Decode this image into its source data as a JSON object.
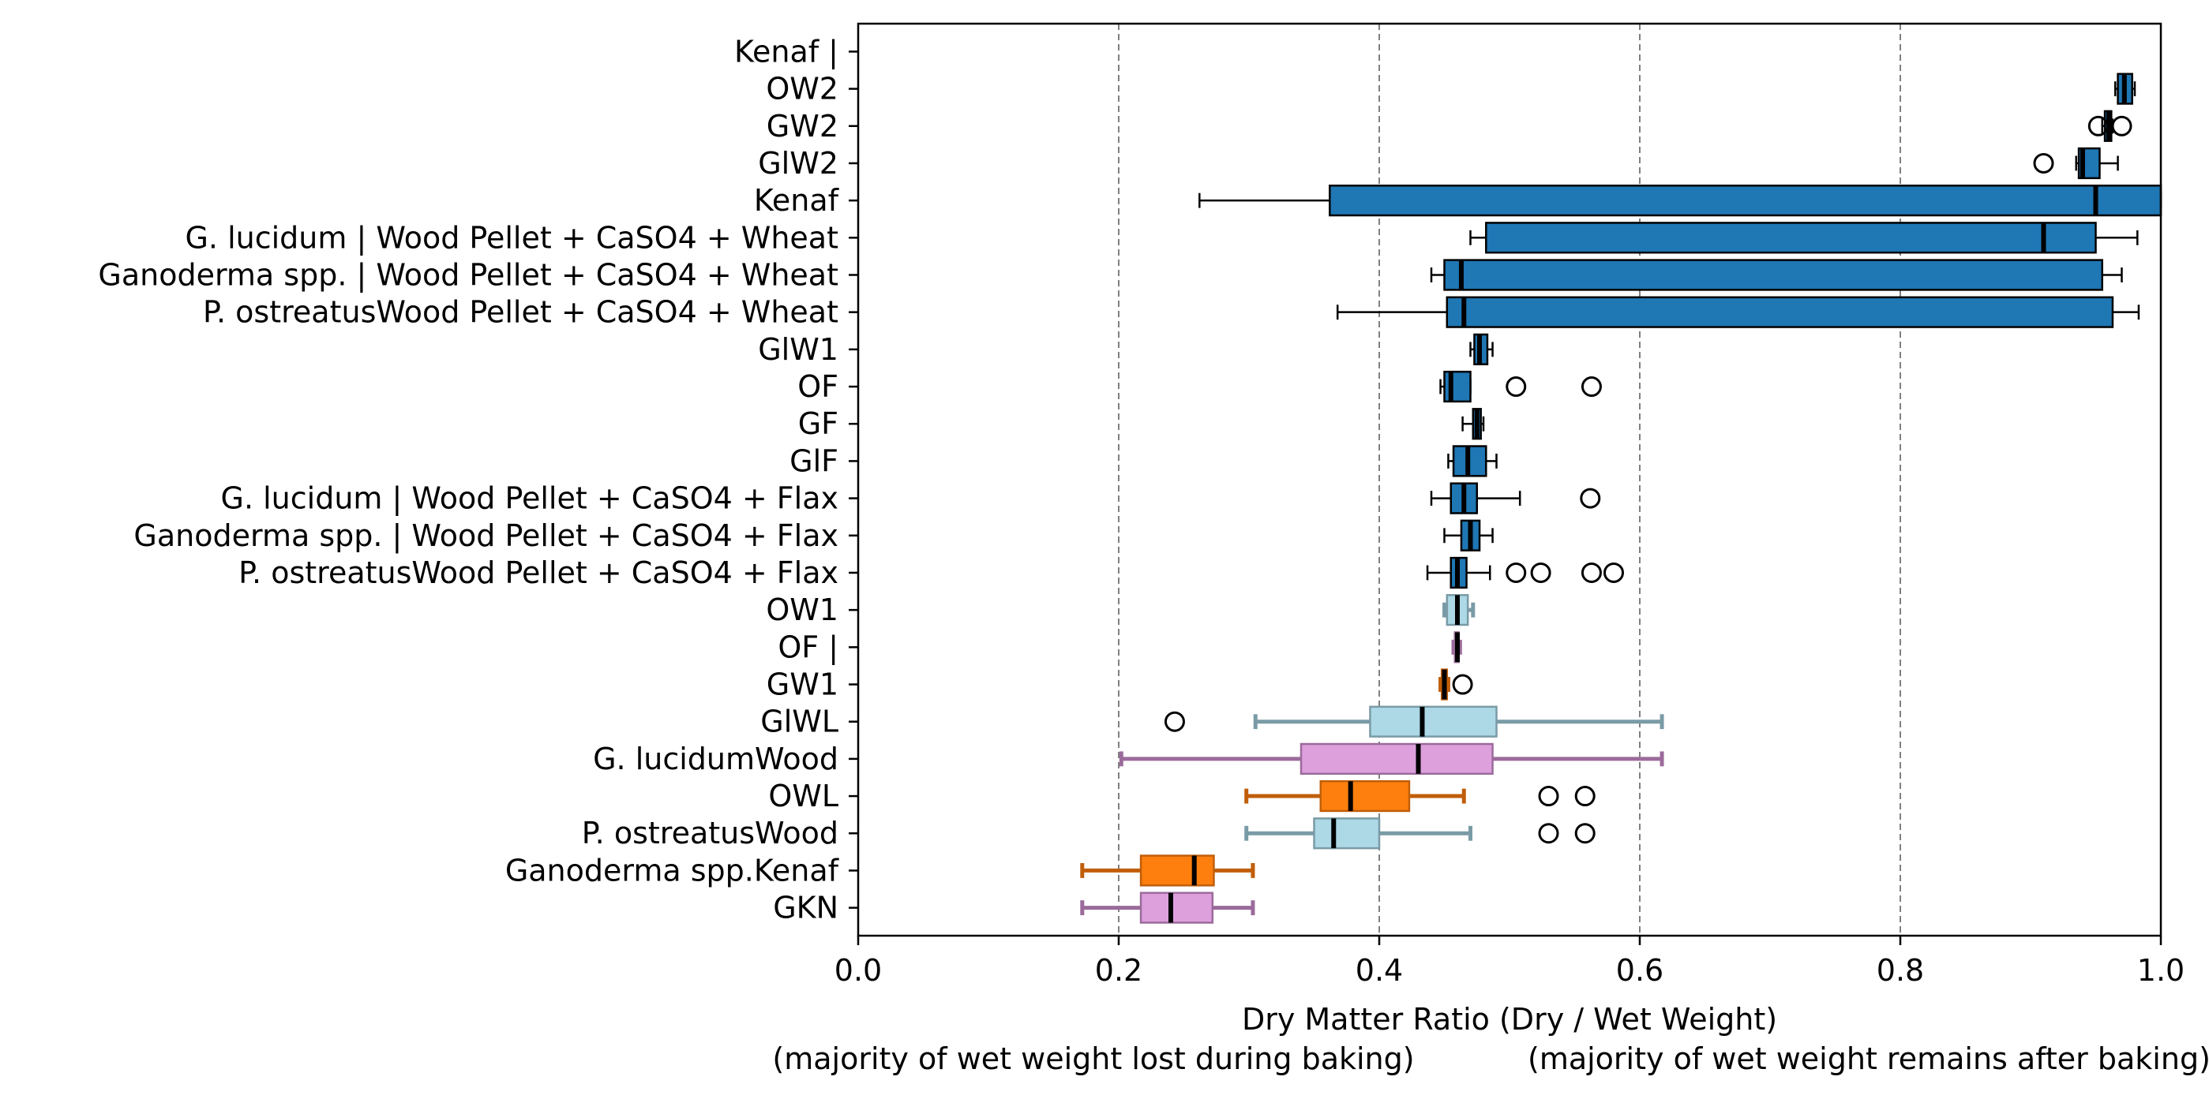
{
  "chart_data": {
    "type": "boxplot",
    "orientation": "horizontal",
    "xlabel": "Dry Matter Ratio (Dry / Wet Weight)",
    "xlabel_left_note": "(majority of wet weight lost during baking)",
    "xlabel_right_note": "(majority of wet weight remains after baking)",
    "xlim": [
      0.0,
      1.0
    ],
    "x_ticks": [
      "0.0",
      "0.2",
      "0.4",
      "0.6",
      "0.8",
      "1.0"
    ],
    "x_tick_values": [
      0.0,
      0.2,
      0.4,
      0.6,
      0.8,
      1.0
    ],
    "grid": "vertical dashed at 0.2, 0.4, 0.6, 0.8",
    "colors": {
      "blue": "#1f77b4",
      "lightblue": "#add8e6",
      "lightblue_edge": "#7a9ba6",
      "plum": "#dda0dd",
      "plum_edge": "#9b6b9b",
      "orange": "#ff7f0e",
      "orange_edge": "#c05e0a",
      "dark": "#000000",
      "grid": "#808080"
    },
    "boxes": [
      {
        "label": "Kenaf |",
        "style": "none"
      },
      {
        "label": "OW2",
        "style": "blue",
        "wlo": 0.965,
        "q1": 0.967,
        "med": 0.972,
        "q3": 0.978,
        "whi": 0.98,
        "fliers": []
      },
      {
        "label": "GW2",
        "style": "blue",
        "wlo": 0.955,
        "q1": 0.957,
        "med": 0.96,
        "q3": 0.962,
        "whi": 0.963,
        "fliers": [
          0.952,
          0.97
        ]
      },
      {
        "label": "GlW2",
        "style": "blue",
        "wlo": 0.935,
        "q1": 0.937,
        "med": 0.94,
        "q3": 0.953,
        "whi": 0.967,
        "fliers": [
          0.91
        ]
      },
      {
        "label": "Kenaf",
        "style": "blue",
        "wlo": 0.262,
        "q1": 0.362,
        "med": 0.95,
        "q3": 1.0,
        "whi": 1.0,
        "fliers": []
      },
      {
        "label": "G. lucidum | Wood Pellet + CaSO4 + Wheat",
        "style": "blue",
        "wlo": 0.47,
        "q1": 0.482,
        "med": 0.91,
        "q3": 0.95,
        "whi": 0.982,
        "fliers": []
      },
      {
        "label": "Ganoderma spp. | Wood Pellet + CaSO4 + Wheat",
        "style": "blue",
        "wlo": 0.44,
        "q1": 0.45,
        "med": 0.463,
        "q3": 0.955,
        "whi": 0.97,
        "fliers": []
      },
      {
        "label": "P. ostreatusWood Pellet + CaSO4 + Wheat",
        "style": "blue",
        "wlo": 0.368,
        "q1": 0.452,
        "med": 0.465,
        "q3": 0.963,
        "whi": 0.983,
        "fliers": []
      },
      {
        "label": "GlW1",
        "style": "blue",
        "wlo": 0.47,
        "q1": 0.473,
        "med": 0.477,
        "q3": 0.483,
        "whi": 0.487,
        "fliers": []
      },
      {
        "label": "OF",
        "style": "blue",
        "wlo": 0.447,
        "q1": 0.45,
        "med": 0.455,
        "q3": 0.47,
        "whi": 0.47,
        "fliers": [
          0.505,
          0.563
        ]
      },
      {
        "label": "GF",
        "style": "blue",
        "wlo": 0.464,
        "q1": 0.472,
        "med": 0.475,
        "q3": 0.478,
        "whi": 0.48,
        "fliers": []
      },
      {
        "label": "GlF",
        "style": "blue",
        "wlo": 0.453,
        "q1": 0.457,
        "med": 0.468,
        "q3": 0.482,
        "whi": 0.49,
        "fliers": []
      },
      {
        "label": "G. lucidum | Wood Pellet + CaSO4 + Flax",
        "style": "blue",
        "wlo": 0.44,
        "q1": 0.455,
        "med": 0.465,
        "q3": 0.475,
        "whi": 0.508,
        "fliers": [
          0.562
        ]
      },
      {
        "label": "Ganoderma spp. | Wood Pellet + CaSO4 + Flax",
        "style": "blue",
        "wlo": 0.45,
        "q1": 0.463,
        "med": 0.47,
        "q3": 0.477,
        "whi": 0.487,
        "fliers": []
      },
      {
        "label": "P. ostreatusWood Pellet + CaSO4 + Flax",
        "style": "blue",
        "wlo": 0.437,
        "q1": 0.455,
        "med": 0.46,
        "q3": 0.467,
        "whi": 0.485,
        "fliers": [
          0.505,
          0.524,
          0.563,
          0.58
        ]
      },
      {
        "label": "OW1",
        "style": "lightblue",
        "wlo": 0.45,
        "q1": 0.452,
        "med": 0.46,
        "q3": 0.468,
        "whi": 0.472,
        "fliers": []
      },
      {
        "label": "OF |",
        "style": "plum",
        "wlo": 0.457,
        "q1": 0.458,
        "med": 0.46,
        "q3": 0.461,
        "whi": 0.462,
        "fliers": []
      },
      {
        "label": "GW1",
        "style": "orange",
        "wlo": 0.447,
        "q1": 0.448,
        "med": 0.45,
        "q3": 0.452,
        "whi": 0.453,
        "fliers": [
          0.464
        ]
      },
      {
        "label": "GlWL",
        "style": "lightblue",
        "wlo": 0.305,
        "q1": 0.393,
        "med": 0.433,
        "q3": 0.49,
        "whi": 0.617,
        "fliers": [
          0.243
        ]
      },
      {
        "label": "G. lucidumWood",
        "style": "plum",
        "wlo": 0.202,
        "q1": 0.34,
        "med": 0.43,
        "q3": 0.487,
        "whi": 0.617,
        "fliers": []
      },
      {
        "label": "OWL",
        "style": "orange",
        "wlo": 0.298,
        "q1": 0.355,
        "med": 0.378,
        "q3": 0.423,
        "whi": 0.465,
        "fliers": [
          0.53,
          0.558
        ]
      },
      {
        "label": "P. ostreatusWood",
        "style": "lightblue",
        "wlo": 0.298,
        "q1": 0.35,
        "med": 0.365,
        "q3": 0.4,
        "whi": 0.47,
        "fliers": [
          0.53,
          0.558
        ]
      },
      {
        "label": "Ganoderma spp.Kenaf",
        "style": "orange",
        "wlo": 0.172,
        "q1": 0.217,
        "med": 0.258,
        "q3": 0.273,
        "whi": 0.303,
        "fliers": []
      },
      {
        "label": "GKN",
        "style": "plum",
        "wlo": 0.172,
        "q1": 0.217,
        "med": 0.24,
        "q3": 0.272,
        "whi": 0.303,
        "fliers": []
      }
    ]
  }
}
